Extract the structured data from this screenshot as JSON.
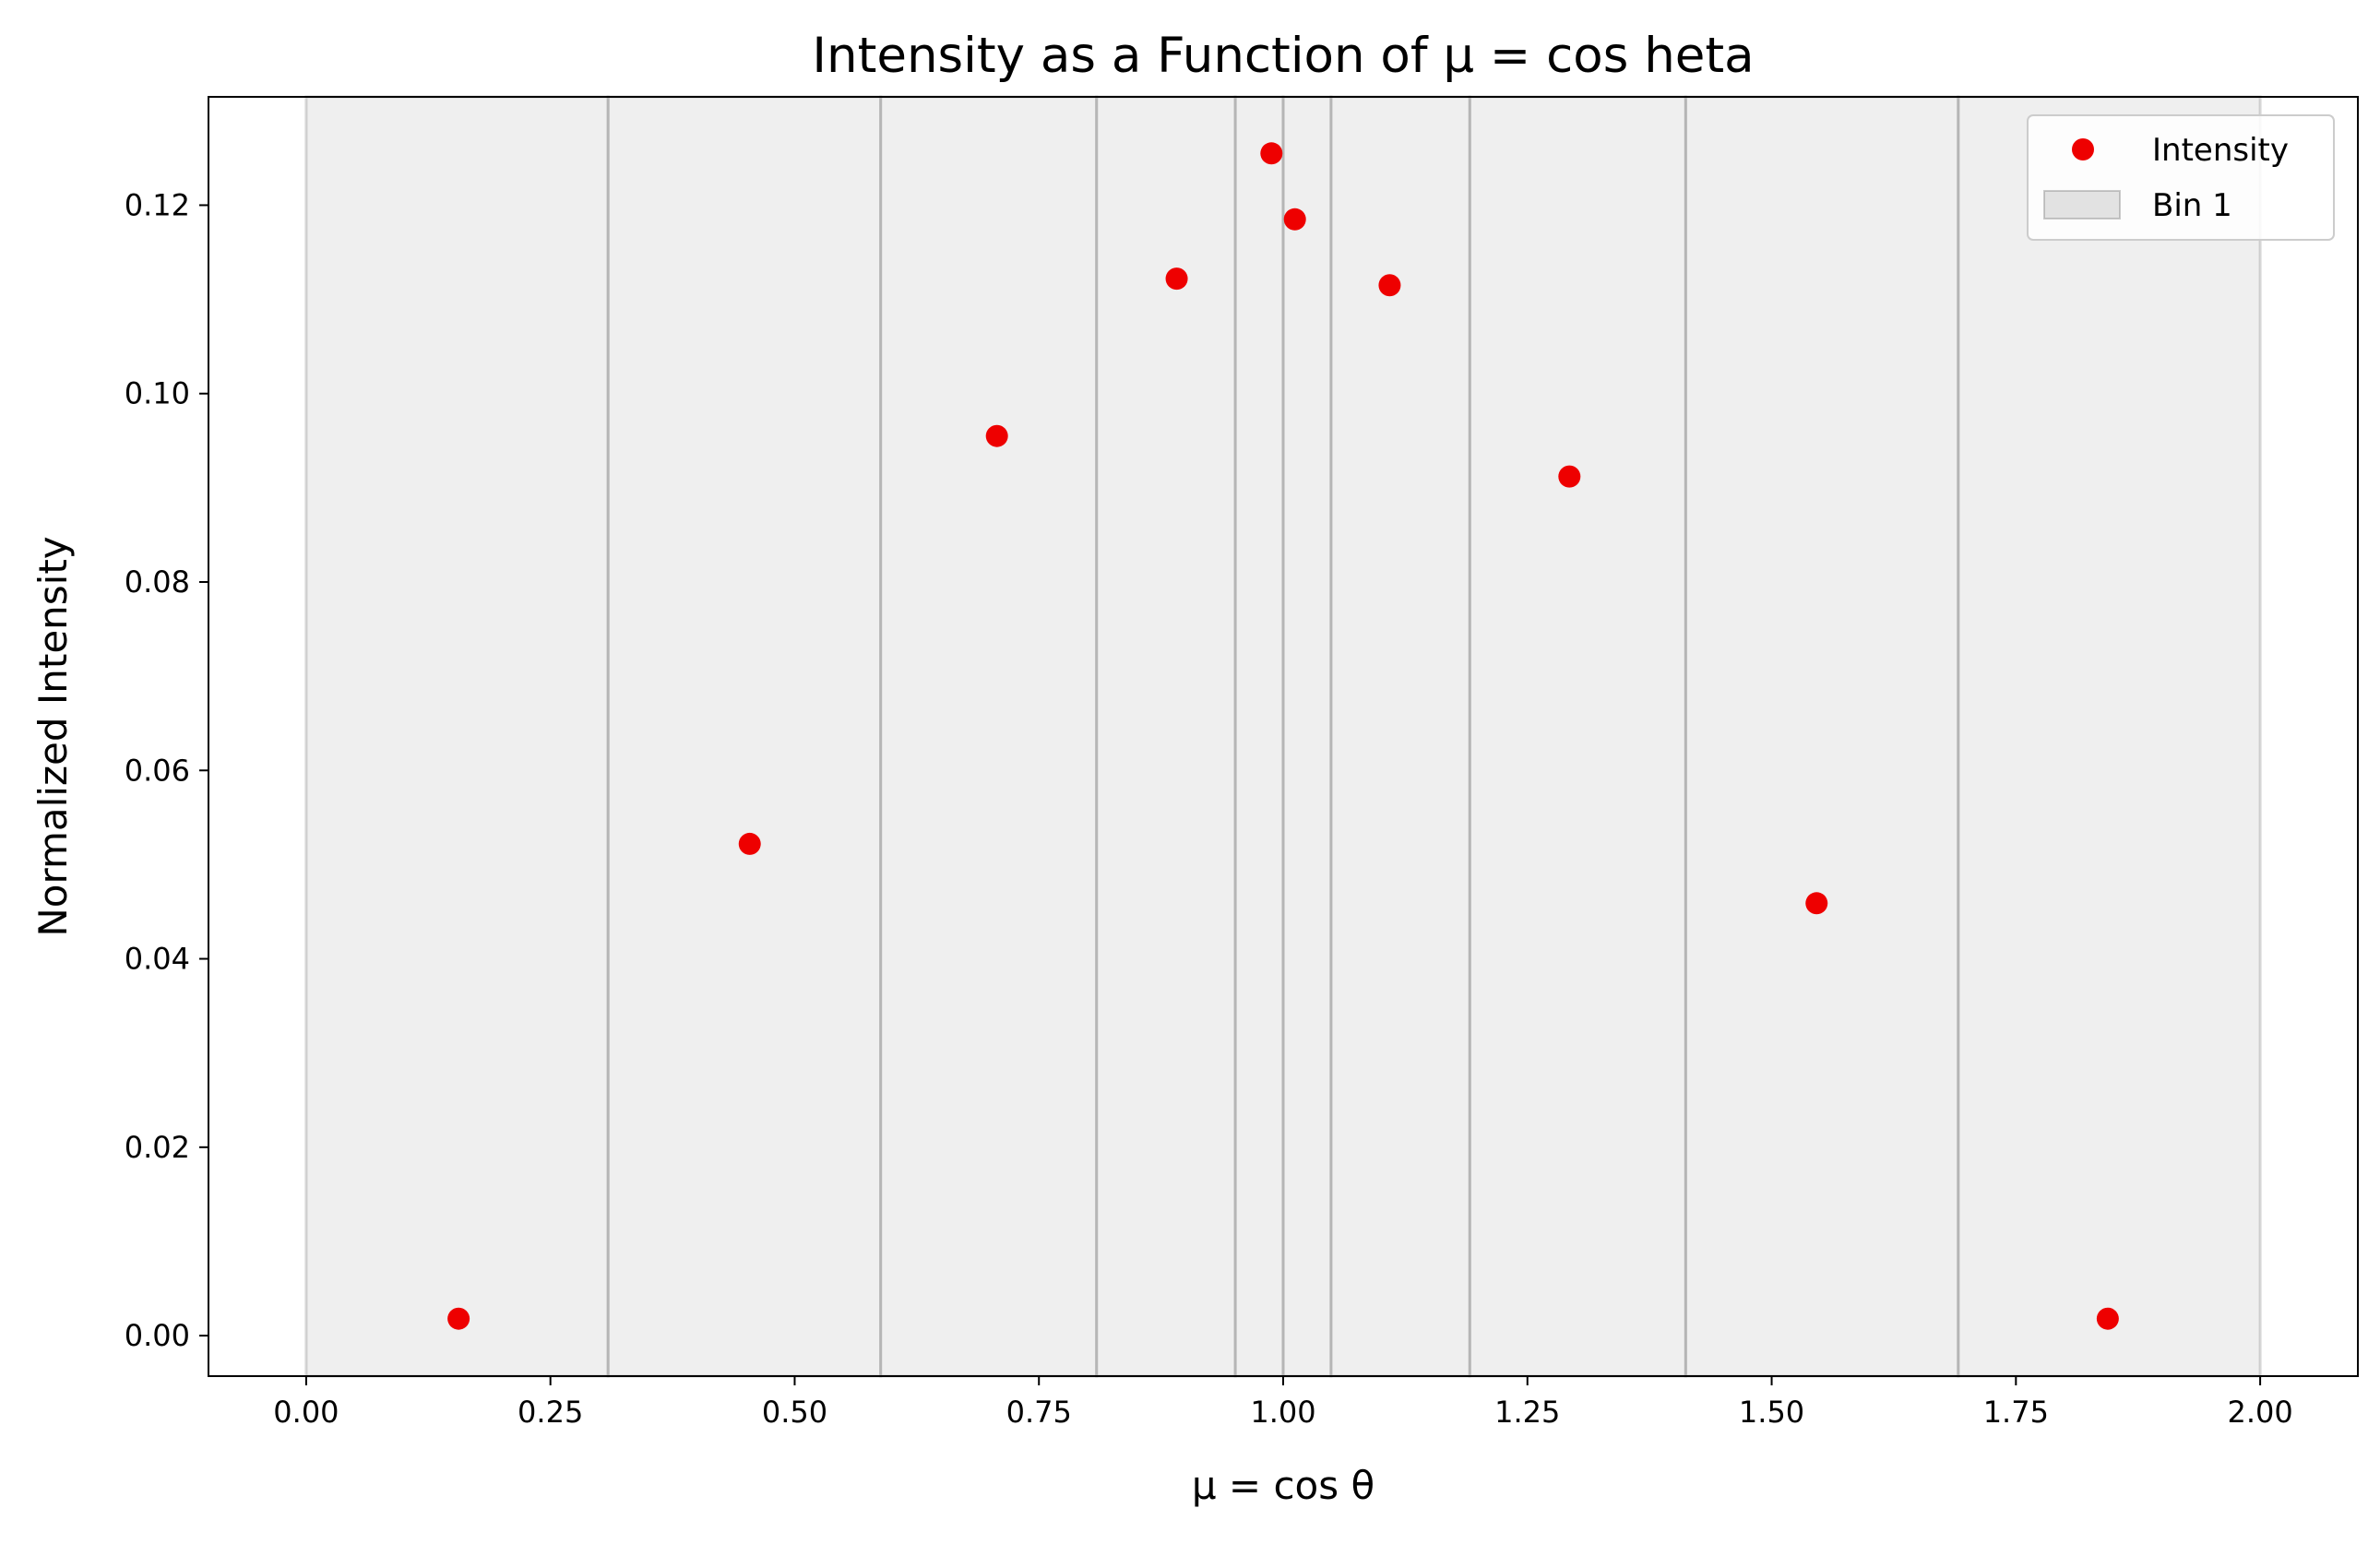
{
  "chart_data": {
    "type": "scatter",
    "title": "Intensity as a Function of $\\mu = \\cos\\theta$",
    "title_display": "Intensity as a Function of μ = cos heta",
    "xlabel": "μ = cos θ",
    "ylabel": "Normalized Intensity",
    "xlim": [
      -0.1,
      2.1
    ],
    "ylim": [
      -0.0043,
      0.1315
    ],
    "xticks": [
      0.0,
      0.25,
      0.5,
      0.75,
      1.0,
      1.25,
      1.5,
      1.75,
      2.0
    ],
    "xtick_labels": [
      "0.00",
      "0.25",
      "0.50",
      "0.75",
      "1.00",
      "1.25",
      "1.50",
      "1.75",
      "2.00"
    ],
    "yticks": [
      0.0,
      0.02,
      0.04,
      0.06,
      0.08,
      0.1,
      0.12
    ],
    "ytick_labels": [
      "0.00",
      "0.02",
      "0.04",
      "0.06",
      "0.08",
      "0.10",
      "0.12"
    ],
    "grid": false,
    "legend_position": "upper right",
    "series": [
      {
        "name": "Intensity",
        "color": "#ee0000",
        "points": [
          {
            "x": 0.156,
            "y": 0.0018
          },
          {
            "x": 0.454,
            "y": 0.0522
          },
          {
            "x": 0.707,
            "y": 0.0955
          },
          {
            "x": 0.891,
            "y": 0.1122
          },
          {
            "x": 0.988,
            "y": 0.1255
          },
          {
            "x": 1.012,
            "y": 0.1185
          },
          {
            "x": 1.109,
            "y": 0.1115
          },
          {
            "x": 1.293,
            "y": 0.0912
          },
          {
            "x": 1.546,
            "y": 0.0459
          },
          {
            "x": 1.844,
            "y": 0.0018
          }
        ]
      }
    ],
    "bins": {
      "legend_label": "Bin 1",
      "color": "#b0b0b0",
      "ranges": [
        [
          0.0,
          0.309
        ],
        [
          0.309,
          0.588
        ],
        [
          0.588,
          0.809
        ],
        [
          0.809,
          0.951
        ],
        [
          0.951,
          1.0
        ],
        [
          1.0,
          1.049
        ],
        [
          1.049,
          1.191
        ],
        [
          1.191,
          1.412
        ],
        [
          1.412,
          1.691
        ],
        [
          1.691,
          2.0
        ]
      ]
    }
  }
}
